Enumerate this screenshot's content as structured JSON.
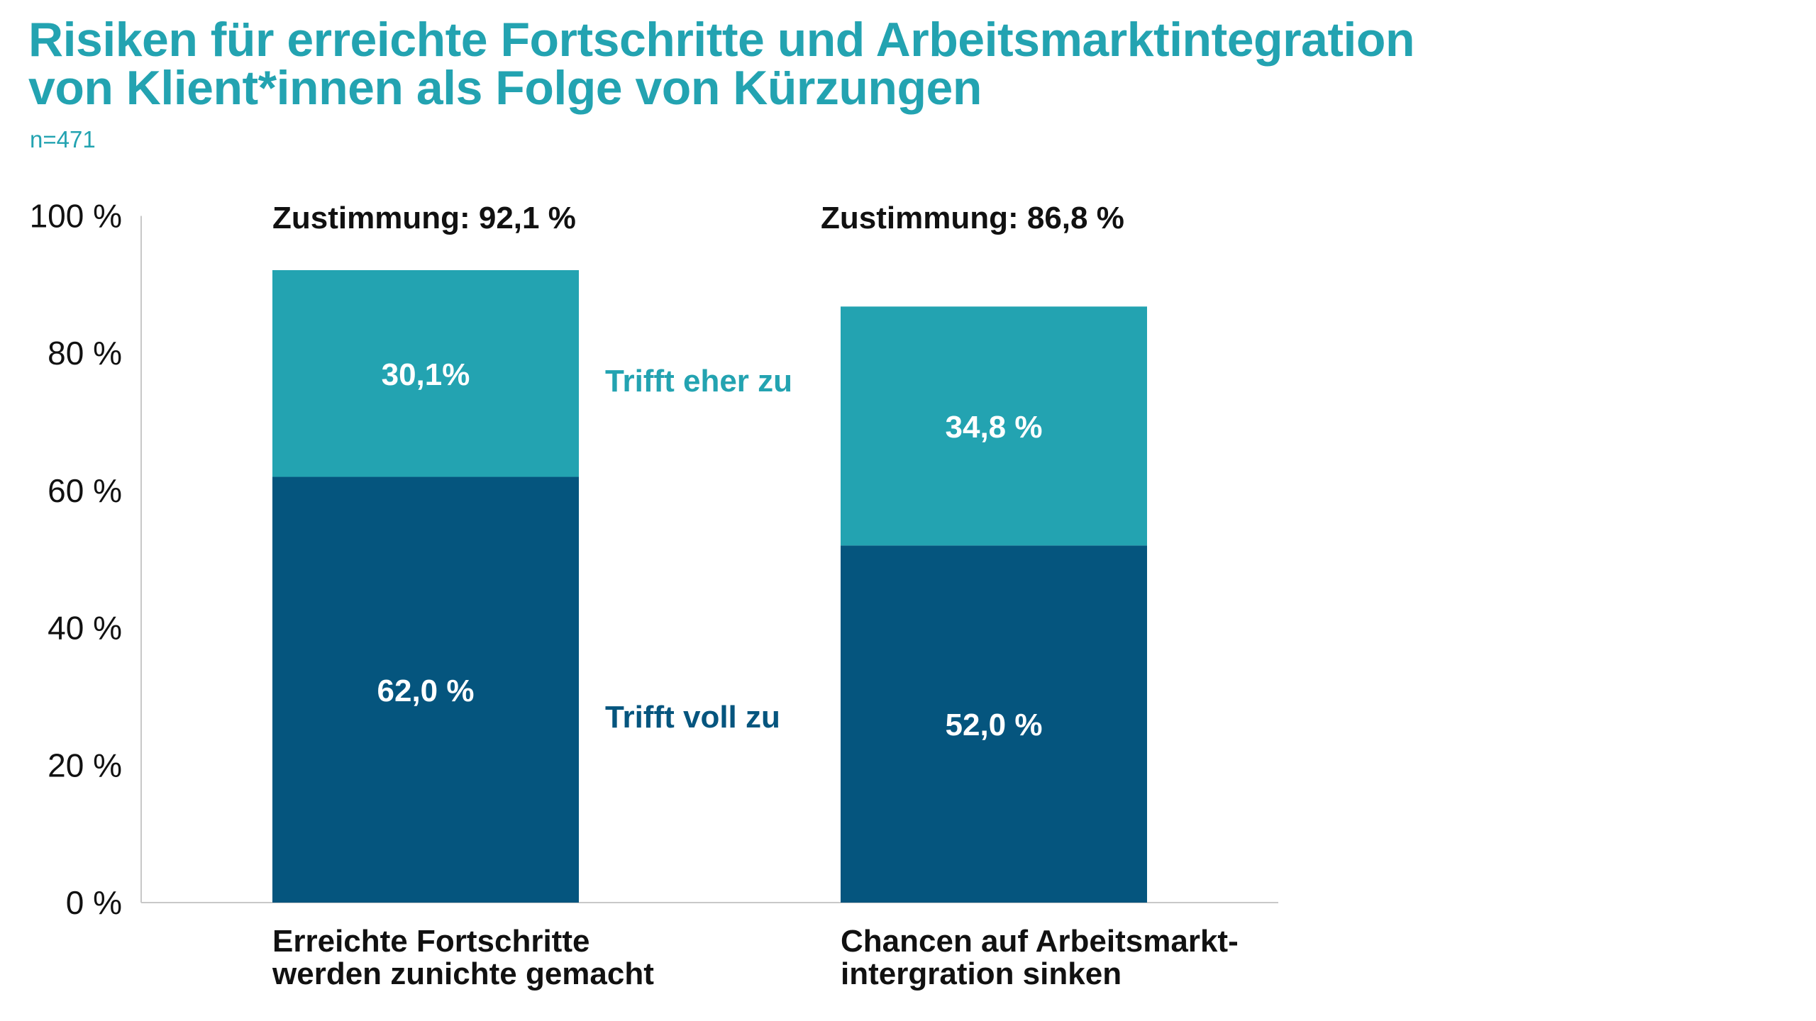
{
  "title_line1": "Risiken für erreichte Fortschritte und Arbeitsmarktintegration",
  "title_line2": "von Klient*innen als Folge von Kürzungen",
  "sample": "n=471",
  "colors": {
    "title": "#23a3b1",
    "trifft_eher_zu": "#23a3b1",
    "trifft_voll_zu": "#05557e"
  },
  "chart_data": {
    "type": "bar",
    "stacked": true,
    "title": "Risiken für erreichte Fortschritte und Arbeitsmarktintegration von Klient*innen als Folge von Kürzungen",
    "ylim": [
      0,
      100
    ],
    "yticks": [
      0,
      20,
      40,
      60,
      80,
      100
    ],
    "ytick_labels": [
      "0 %",
      "20 %",
      "40 %",
      "60 %",
      "80 %",
      "100 %"
    ],
    "categories": [
      [
        "Erreichte Fortschritte",
        "werden zunichte gemacht"
      ],
      [
        "Chancen auf Arbeitsmarkt-",
        "intergration sinken"
      ]
    ],
    "totals": [
      92.1,
      86.8
    ],
    "total_labels": [
      "Zustimmung: 92,1 %",
      "Zustimmung: 86,8 %"
    ],
    "series": [
      {
        "name": "Trifft voll zu",
        "values": [
          62.0,
          52.0
        ],
        "labels": [
          "62,0 %",
          "52,0 %"
        ],
        "color": "#05557e"
      },
      {
        "name": "Trifft eher zu",
        "values": [
          30.1,
          34.8
        ],
        "labels": [
          "30,1%",
          "34,8 %"
        ],
        "color": "#23a3b1"
      }
    ],
    "grid": false,
    "legend": "inline-right-of-first-bar"
  }
}
